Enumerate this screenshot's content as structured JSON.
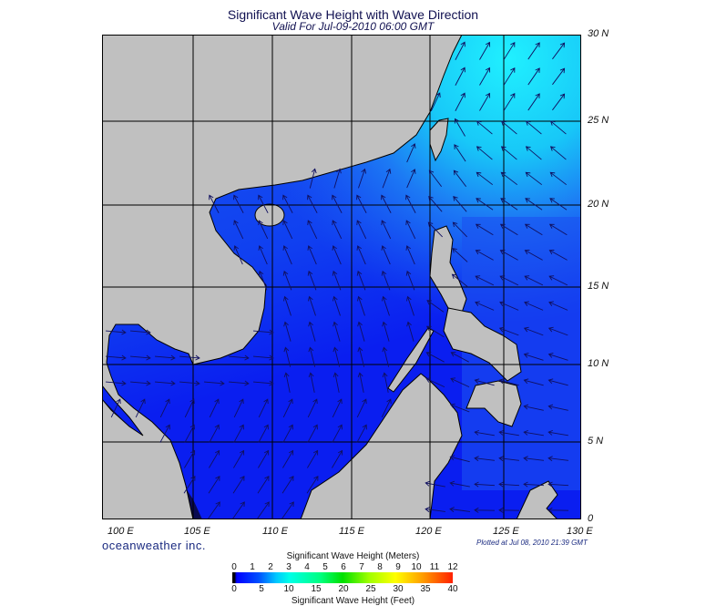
{
  "title": "Significant Wave Height with Wave Direction",
  "subtitle": "Valid For Jul-09-2010 06:00 GMT",
  "map": {
    "lat_labels": [
      "30 N",
      "25 N",
      "20 N",
      "15 N",
      "10 N",
      "5 N",
      "0"
    ],
    "lon_labels": [
      "100 E",
      "105 E",
      "110 E",
      "115 E",
      "120 E",
      "125 E",
      "130 E"
    ],
    "colors": {
      "land": "#c0c0c0",
      "sea_low": "#0a1ef0",
      "sea_mid": "#1c5af2",
      "sea_high": "#18d8f8",
      "strait": "#0a0a50",
      "arrow": "#101060"
    }
  },
  "brand": "oceanweather inc.",
  "plotted": "Plotted at Jul 08, 2010 21:39 GMT",
  "legend": {
    "title_meters": "Significant Wave Height (Meters)",
    "title_feet": "Significant Wave Height (Feet)",
    "meters": [
      "0",
      "1",
      "2",
      "3",
      "4",
      "5",
      "6",
      "7",
      "8",
      "9",
      "10",
      "11",
      "12"
    ],
    "feet": [
      "0",
      "5",
      "10",
      "15",
      "20",
      "25",
      "30",
      "35",
      "40"
    ]
  }
}
